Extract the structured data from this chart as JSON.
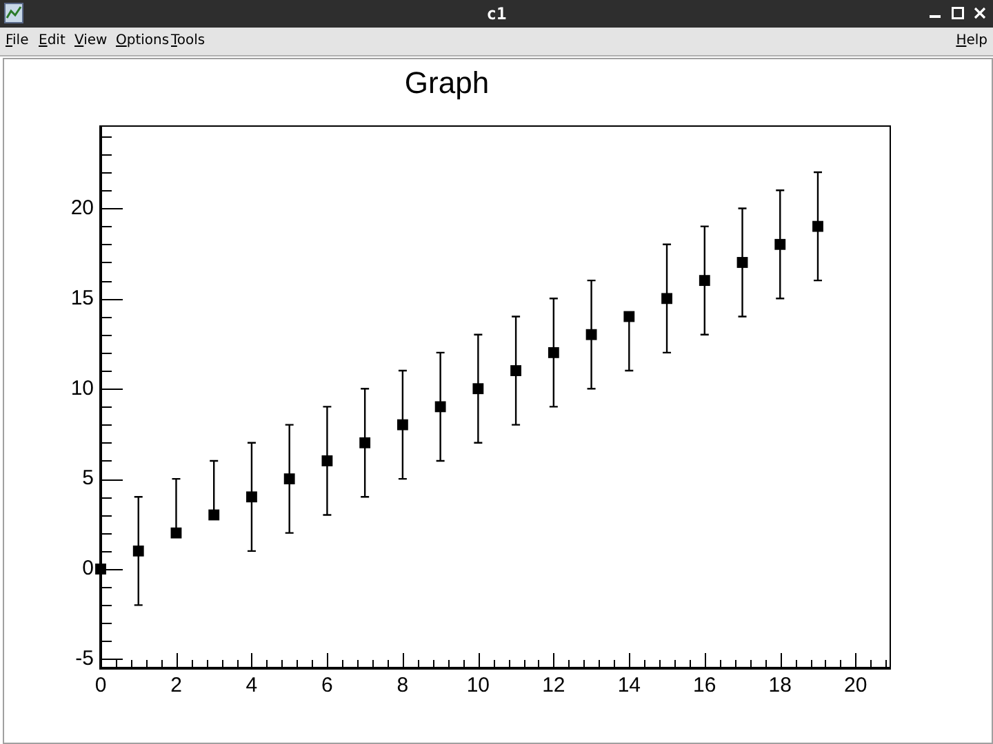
{
  "chart_data": {
    "type": "scatter",
    "title": "Graph",
    "annotations": [
      "c1",
      "File",
      "Edit",
      "View",
      "Options",
      "Tools",
      "Help"
    ],
    "x": [
      0,
      1,
      2,
      3,
      4,
      5,
      6,
      7,
      8,
      9,
      10,
      11,
      12,
      13,
      14,
      15,
      16,
      17,
      18,
      19
    ],
    "series": [
      {
        "color": "#000000",
        "values": [
          0,
          1,
          2,
          3,
          4,
          5,
          6,
          7,
          8,
          9,
          10,
          11,
          12,
          13,
          14,
          15,
          16,
          17,
          18,
          19
        ],
        "errors": [
          null,
          3,
          [
            2,
            5
          ],
          [
            3,
            6
          ],
          3,
          3,
          3,
          3,
          3,
          3,
          3,
          3,
          3,
          3,
          [
            11,
            14
          ],
          3,
          3,
          3,
          3,
          3
        ]
      }
    ],
    "marker": "square",
    "xlim": [
      0,
      20.9
    ],
    "xticks": [
      0,
      {
        "value": 0.4,
        "label": null
      },
      {
        "value": 0.8,
        "label": null
      },
      {
        "value": 1.2,
        "label": null
      },
      {
        "value": 1.6,
        "label": null
      },
      2,
      {
        "value": 2.4,
        "label": null
      },
      {
        "value": 2.8,
        "label": null
      },
      {
        "value": 3.2,
        "label": null
      },
      {
        "value": 3.6,
        "label": null
      },
      4,
      {
        "value": 4.4,
        "label": null
      },
      {
        "value": 4.8,
        "label": null
      },
      {
        "value": 5.2,
        "label": null
      },
      {
        "value": 5.6,
        "label": null
      },
      6,
      {
        "value": 6.4,
        "label": null
      },
      {
        "value": 6.8,
        "label": null
      },
      {
        "value": 7.2,
        "label": null
      },
      {
        "value": 7.6,
        "label": null
      },
      8,
      {
        "value": 8.4,
        "label": null
      },
      {
        "value": 8.8,
        "label": null
      },
      {
        "value": 9.2,
        "label": null
      },
      {
        "value": 9.6,
        "label": null
      },
      10,
      {
        "value": 10.4,
        "label": null
      },
      {
        "value": 10.8,
        "label": null
      },
      {
        "value": 11.2,
        "label": null
      },
      {
        "value": 11.6,
        "label": null
      },
      12,
      {
        "value": 12.4,
        "label": null
      },
      {
        "value": 12.8,
        "label": null
      },
      {
        "value": 13.2,
        "label": null
      },
      {
        "value": 13.6,
        "label": null
      },
      14,
      {
        "value": 14.4,
        "label": null
      },
      {
        "value": 14.8,
        "label": null
      },
      {
        "value": 15.2,
        "label": null
      },
      {
        "value": 15.6,
        "label": null
      },
      16,
      {
        "value": 16.4,
        "label": null
      },
      {
        "value": 16.8,
        "label": null
      },
      {
        "value": 17.2,
        "label": null
      },
      {
        "value": 17.6,
        "label": null
      },
      18,
      {
        "value": 18.4,
        "label": null
      },
      {
        "value": 18.8,
        "label": null
      },
      {
        "value": 19.2,
        "label": null
      },
      {
        "value": 19.6,
        "label": null
      },
      20,
      {
        "value": 20.4,
        "label": null
      },
      {
        "value": 20.8,
        "label": null
      }
    ],
    "ylim": [
      -5.5,
      24.6
    ],
    "yticks": [
      -5,
      {
        "value": -4,
        "label": null
      },
      {
        "value": -3,
        "label": null
      },
      {
        "value": -2,
        "label": null
      },
      {
        "value": -1,
        "label": null
      },
      0,
      {
        "value": 1,
        "label": null
      },
      {
        "value": 2,
        "label": null
      },
      {
        "value": 3,
        "label": null
      },
      {
        "value": 4,
        "label": null
      },
      5,
      {
        "value": 6,
        "label": null
      },
      {
        "value": 7,
        "label": null
      },
      {
        "value": 8,
        "label": null
      },
      {
        "value": 9,
        "label": null
      },
      10,
      {
        "value": 11,
        "label": null
      },
      {
        "value": 12,
        "label": null
      },
      {
        "value": 13,
        "label": null
      },
      {
        "value": 14,
        "label": null
      },
      15,
      {
        "value": 16,
        "label": null
      },
      {
        "value": 17,
        "label": null
      },
      {
        "value": 18,
        "label": null
      },
      {
        "value": 19,
        "label": null
      },
      20,
      {
        "value": 21,
        "label": null
      },
      {
        "value": 22,
        "label": null
      },
      {
        "value": 23,
        "label": null
      },
      {
        "value": 24,
        "label": null
      }
    ],
    "grid": false,
    "legend": false
  }
}
